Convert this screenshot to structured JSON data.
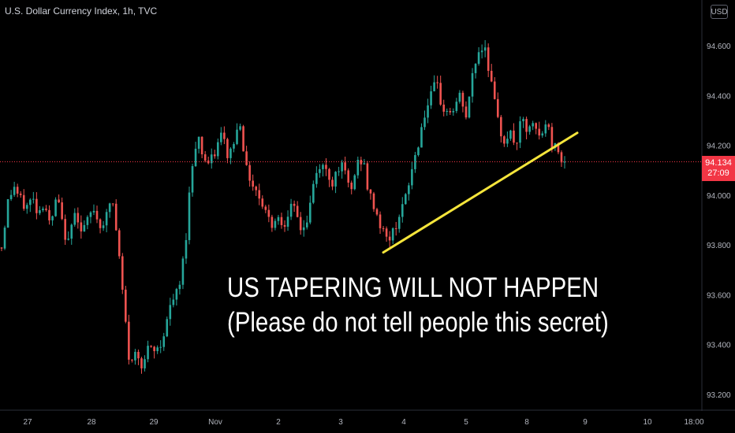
{
  "header": {
    "symbol_title": "U.S. Dollar Currency Index, 1h, TVC",
    "currency_label": "USD"
  },
  "price_tag": {
    "price": "94.134",
    "countdown": "27:09"
  },
  "annotation": {
    "line1": "US TAPERING WILL NOT HAPPEN",
    "line2": "(Please do not tell people this secret)"
  },
  "colors": {
    "up": "#26a69a",
    "down": "#ef5350",
    "trendline": "#f5e53b",
    "price_line": "#f23645",
    "background": "#000000"
  },
  "chart_data": {
    "type": "candlestick",
    "ylim": [
      93.15,
      94.72
    ],
    "y_ticks": [
      "94.600",
      "94.400",
      "94.200",
      "94.000",
      "93.800",
      "93.600",
      "93.400",
      "93.200"
    ],
    "x_tick_labels": [
      "27",
      "28",
      "29",
      "Nov",
      "2",
      "3",
      "4",
      "5",
      "8",
      "9",
      "10",
      "18:00"
    ],
    "last_price": 94.134,
    "series": [
      {
        "name": "",
        "path_prices": [
          93.79,
          93.97,
          94.04,
          93.98,
          93.95,
          93.99,
          93.93,
          93.98,
          93.86,
          94.0,
          93.87,
          93.8,
          93.96,
          93.85,
          93.89,
          93.95,
          93.88,
          93.9,
          94.0,
          93.8,
          93.55,
          93.3,
          93.38,
          93.32,
          93.38,
          93.37,
          93.4,
          93.5,
          93.58,
          93.62,
          93.8,
          94.1,
          94.25,
          94.15,
          94.12,
          94.18,
          94.25,
          94.15,
          94.22,
          94.3,
          94.1,
          94.05,
          94.0,
          93.95,
          93.88,
          93.92,
          93.88,
          93.95,
          93.93,
          93.86,
          93.9,
          94.05,
          94.12,
          94.1,
          94.05,
          94.12,
          94.1,
          94.0,
          94.12,
          94.15,
          94.0,
          93.95,
          93.87,
          93.82,
          93.85,
          93.93,
          93.98,
          94.1,
          94.2,
          94.32,
          94.38,
          94.45,
          94.35,
          94.33,
          94.35,
          94.4,
          94.3,
          94.5,
          94.58,
          94.6,
          94.45,
          94.3,
          94.22,
          94.25,
          94.2,
          94.3,
          94.25,
          94.28,
          94.22,
          94.3,
          94.2,
          94.18,
          94.13
        ]
      }
    ],
    "trendline": {
      "from": {
        "x": "4",
        "y": 93.77
      },
      "to": {
        "x": "8",
        "y": 94.25
      }
    }
  }
}
